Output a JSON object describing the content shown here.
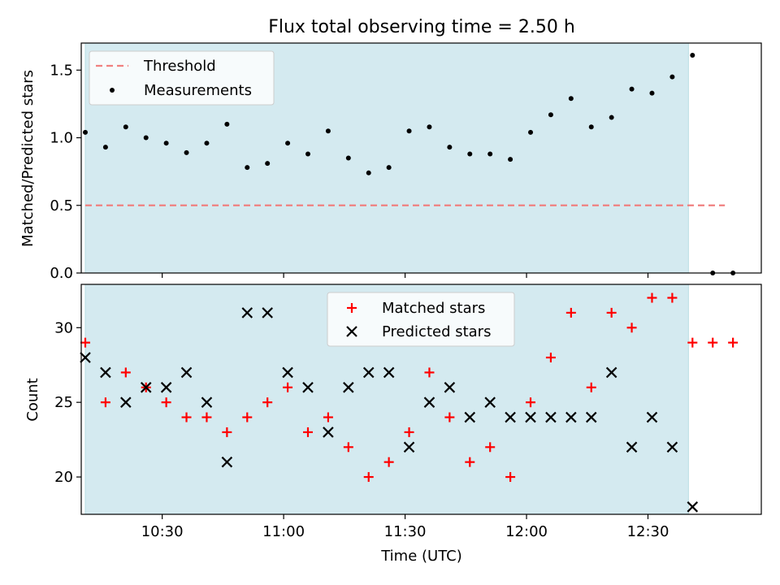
{
  "chart_data": [
    {
      "type": "scatter",
      "title": "Flux total observing time = 2.50 h",
      "xlabel": "",
      "ylabel": "Matched/Predicted stars",
      "ylim": [
        0,
        1.7
      ],
      "yticks": [
        "0.0",
        "0.5",
        "1.0",
        "1.5"
      ],
      "xlim": [
        "10:10",
        "12:58"
      ],
      "shaded_span": [
        "10:11",
        "12:40"
      ],
      "shade_color": "#d4eaf0",
      "legend": {
        "placement": "top-left",
        "entries": [
          "Threshold",
          "Measurements"
        ]
      },
      "threshold": {
        "name": "Threshold",
        "value": 0.5,
        "x": [
          "10:11",
          "12:49"
        ],
        "color": "#f08080",
        "style": "dashed"
      },
      "series": [
        {
          "name": "Measurements",
          "color": "#000000",
          "marker": "dot",
          "x": [
            "10:11",
            "10:16",
            "10:21",
            "10:26",
            "10:31",
            "10:36",
            "10:41",
            "10:46",
            "10:51",
            "10:56",
            "11:01",
            "11:06",
            "11:11",
            "11:16",
            "11:21",
            "11:26",
            "11:31",
            "11:36",
            "11:41",
            "11:46",
            "11:51",
            "11:56",
            "12:01",
            "12:06",
            "12:11",
            "12:16",
            "12:21",
            "12:26",
            "12:31",
            "12:36",
            "12:41",
            "12:46",
            "12:51"
          ],
          "y": [
            1.04,
            0.93,
            1.08,
            1.0,
            0.96,
            0.89,
            0.96,
            1.1,
            0.78,
            0.81,
            0.96,
            0.88,
            1.05,
            0.85,
            0.74,
            0.78,
            1.05,
            1.08,
            0.93,
            0.88,
            0.88,
            0.84,
            1.04,
            1.17,
            1.29,
            1.08,
            1.15,
            1.36,
            1.33,
            1.45,
            1.61,
            0.0,
            0.0
          ]
        }
      ]
    },
    {
      "type": "scatter",
      "title": "",
      "xlabel": "Time (UTC)",
      "ylabel": "Count",
      "ylim": [
        17.5,
        32.9
      ],
      "yticks": [
        "20",
        "25",
        "30"
      ],
      "xticks": [
        "10:30",
        "11:00",
        "11:30",
        "12:00",
        "12:30"
      ],
      "xlim": [
        "10:10",
        "12:58"
      ],
      "shaded_span": [
        "10:11",
        "12:40"
      ],
      "shade_color": "#d4eaf0",
      "legend": {
        "placement": "upper-center",
        "entries": [
          "Matched stars",
          "Predicted stars"
        ]
      },
      "series": [
        {
          "name": "Matched stars",
          "color": "#ff0000",
          "marker": "plus",
          "x": [
            "10:11",
            "10:16",
            "10:21",
            "10:26",
            "10:31",
            "10:36",
            "10:41",
            "10:46",
            "10:51",
            "10:56",
            "11:01",
            "11:06",
            "11:11",
            "11:16",
            "11:21",
            "11:26",
            "11:31",
            "11:36",
            "11:41",
            "11:46",
            "11:51",
            "11:56",
            "12:01",
            "12:06",
            "12:11",
            "12:16",
            "12:21",
            "12:26",
            "12:31",
            "12:36",
            "12:41",
            "12:46",
            "12:51"
          ],
          "y": [
            29,
            25,
            27,
            26,
            25,
            24,
            24,
            23,
            24,
            25,
            26,
            23,
            24,
            22,
            20,
            21,
            23,
            27,
            24,
            21,
            22,
            20,
            25,
            28,
            31,
            26,
            31,
            30,
            32,
            32,
            29,
            29,
            29
          ]
        },
        {
          "name": "Predicted stars",
          "color": "#000000",
          "marker": "x",
          "x": [
            "10:11",
            "10:16",
            "10:21",
            "10:26",
            "10:31",
            "10:36",
            "10:41",
            "10:46",
            "10:51",
            "10:56",
            "11:01",
            "11:06",
            "11:11",
            "11:16",
            "11:21",
            "11:26",
            "11:31",
            "11:36",
            "11:41",
            "11:46",
            "11:51",
            "11:56",
            "12:01",
            "12:06",
            "12:11",
            "12:16",
            "12:21",
            "12:26",
            "12:31",
            "12:36",
            "12:41"
          ],
          "y": [
            28,
            27,
            25,
            26,
            26,
            27,
            25,
            21,
            31,
            31,
            27,
            26,
            23,
            26,
            27,
            27,
            22,
            25,
            26,
            24,
            25,
            24,
            24,
            24,
            24,
            24,
            27,
            22,
            24,
            22,
            18
          ]
        }
      ]
    }
  ]
}
